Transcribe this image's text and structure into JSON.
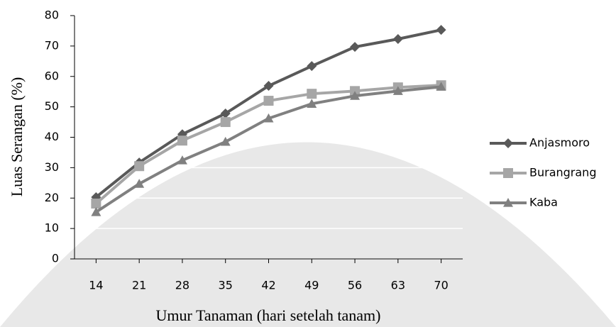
{
  "chart_data": {
    "type": "line",
    "x_label": "Umur Tanaman (hari setelah tanam)",
    "y_label": "Luas Serangan (%)",
    "x": [
      14,
      21,
      28,
      35,
      42,
      49,
      56,
      63,
      70
    ],
    "xlim": [
      10.5,
      73.5
    ],
    "xticks": [
      14,
      21,
      28,
      35,
      42,
      49,
      56,
      63,
      70
    ],
    "ylim": [
      0,
      80
    ],
    "yticks": [
      0,
      10,
      20,
      30,
      40,
      50,
      60,
      70,
      80
    ],
    "grid": true,
    "legend": "right",
    "series": [
      {
        "name": "Anjasmoro",
        "color": "#595959",
        "marker": "diamond",
        "values": [
          20.3,
          31.7,
          41,
          47.8,
          56.9,
          63.4,
          69.7,
          72.3,
          75.3
        ]
      },
      {
        "name": "Burangrang",
        "color": "#a6a6a6",
        "marker": "square",
        "values": [
          18.2,
          30.5,
          38.9,
          45,
          52,
          54.3,
          55.2,
          56.4,
          57.1
        ]
      },
      {
        "name": "Kaba",
        "color": "#808080",
        "marker": "triangle",
        "values": [
          15.4,
          24.7,
          32.4,
          38.5,
          46.2,
          51,
          53.6,
          55.2,
          56.6
        ]
      }
    ]
  }
}
